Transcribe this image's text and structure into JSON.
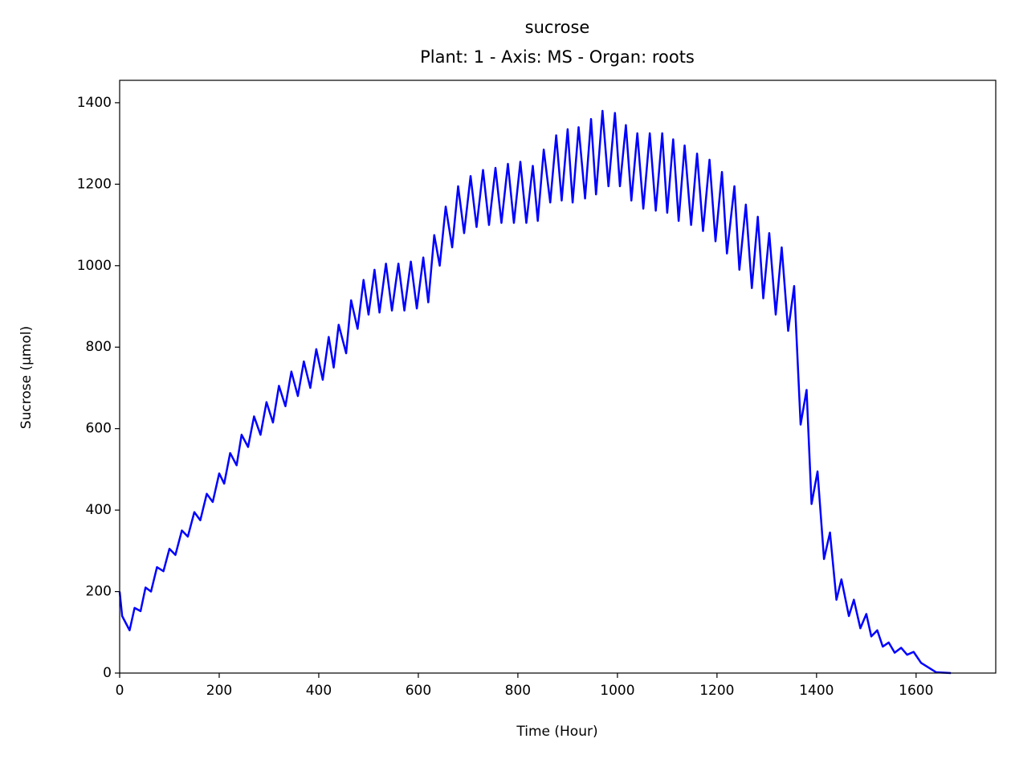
{
  "chart_data": {
    "type": "line",
    "title": "sucrose",
    "subtitle": "Plant: 1 - Axis: MS - Organ: roots",
    "xlabel": "Time (Hour)",
    "ylabel": "Sucrose (µmol)",
    "xlim": [
      0,
      1760
    ],
    "ylim": [
      0,
      1455
    ],
    "xticks": [
      0,
      200,
      400,
      600,
      800,
      1000,
      1200,
      1400,
      1600
    ],
    "yticks": [
      0,
      200,
      400,
      600,
      800,
      1000,
      1200,
      1400
    ],
    "grid": false,
    "x": [
      0,
      5,
      20,
      30,
      42,
      52,
      63,
      75,
      88,
      100,
      112,
      125,
      137,
      150,
      162,
      175,
      187,
      200,
      210,
      222,
      235,
      245,
      258,
      270,
      283,
      295,
      308,
      320,
      333,
      345,
      358,
      370,
      383,
      395,
      408,
      420,
      430,
      440,
      455,
      465,
      478,
      490,
      500,
      512,
      522,
      535,
      547,
      560,
      572,
      585,
      597,
      610,
      620,
      632,
      643,
      655,
      668,
      680,
      692,
      705,
      717,
      730,
      742,
      755,
      767,
      780,
      792,
      805,
      817,
      830,
      840,
      852,
      865,
      877,
      888,
      900,
      910,
      922,
      935,
      947,
      957,
      970,
      982,
      995,
      1005,
      1017,
      1028,
      1040,
      1052,
      1065,
      1077,
      1090,
      1100,
      1112,
      1123,
      1135,
      1148,
      1160,
      1172,
      1185,
      1197,
      1210,
      1220,
      1235,
      1245,
      1258,
      1270,
      1282,
      1293,
      1305,
      1318,
      1330,
      1343,
      1355,
      1368,
      1380,
      1390,
      1402,
      1415,
      1427,
      1440,
      1450,
      1465,
      1475,
      1488,
      1500,
      1510,
      1522,
      1533,
      1545,
      1557,
      1570,
      1582,
      1595,
      1610,
      1640,
      1670
    ],
    "series": [
      {
        "color": "#0000ff",
        "values": [
          200,
          140,
          105,
          160,
          152,
          210,
          200,
          260,
          250,
          305,
          290,
          350,
          335,
          395,
          375,
          440,
          420,
          490,
          465,
          540,
          510,
          585,
          555,
          630,
          585,
          665,
          615,
          705,
          655,
          740,
          680,
          765,
          700,
          795,
          720,
          825,
          750,
          855,
          785,
          915,
          845,
          965,
          880,
          990,
          885,
          1005,
          890,
          1005,
          890,
          1010,
          895,
          1020,
          910,
          1075,
          1000,
          1145,
          1045,
          1195,
          1080,
          1220,
          1095,
          1235,
          1100,
          1240,
          1105,
          1250,
          1105,
          1255,
          1105,
          1245,
          1110,
          1285,
          1155,
          1320,
          1160,
          1335,
          1155,
          1340,
          1165,
          1360,
          1175,
          1380,
          1195,
          1375,
          1195,
          1345,
          1160,
          1325,
          1140,
          1325,
          1135,
          1325,
          1130,
          1310,
          1110,
          1295,
          1100,
          1275,
          1085,
          1260,
          1060,
          1230,
          1030,
          1195,
          990,
          1150,
          945,
          1120,
          920,
          1080,
          880,
          1045,
          840,
          950,
          610,
          695,
          415,
          495,
          280,
          345,
          180,
          230,
          140,
          180,
          110,
          145,
          90,
          105,
          65,
          75,
          50,
          62,
          45,
          52,
          25,
          2,
          0
        ]
      }
    ]
  }
}
